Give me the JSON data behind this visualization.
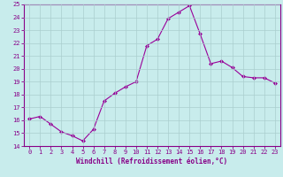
{
  "x": [
    0,
    1,
    2,
    3,
    4,
    5,
    6,
    7,
    8,
    9,
    10,
    11,
    12,
    13,
    14,
    15,
    16,
    17,
    18,
    19,
    20,
    21,
    22,
    23
  ],
  "y": [
    16.1,
    16.3,
    15.7,
    15.1,
    14.8,
    14.4,
    15.3,
    17.5,
    18.1,
    18.6,
    19.0,
    21.8,
    22.3,
    23.9,
    24.4,
    24.9,
    22.7,
    20.4,
    20.6,
    20.1,
    19.4,
    19.3,
    19.3,
    18.9
  ],
  "line_color": "#990099",
  "marker": "D",
  "marker_size": 2,
  "xlabel": "Windchill (Refroidissement éolien,°C)",
  "ylim": [
    14,
    25
  ],
  "xlim": [
    -0.5,
    23.5
  ],
  "yticks": [
    14,
    15,
    16,
    17,
    18,
    19,
    20,
    21,
    22,
    23,
    24,
    25
  ],
  "xticks": [
    0,
    1,
    2,
    3,
    4,
    5,
    6,
    7,
    8,
    9,
    10,
    11,
    12,
    13,
    14,
    15,
    16,
    17,
    18,
    19,
    20,
    21,
    22,
    23
  ],
  "xtick_labels": [
    "0",
    "1",
    "2",
    "3",
    "4",
    "5",
    "6",
    "7",
    "8",
    "9",
    "10",
    "11",
    "12",
    "13",
    "14",
    "15",
    "16",
    "17",
    "18",
    "19",
    "20",
    "21",
    "22",
    "23"
  ],
  "background_color": "#c8ecec",
  "grid_color": "#aacece",
  "axis_bg": "#c8ecec",
  "line_lw": 0.8,
  "xlabel_color": "#880088",
  "tick_color": "#880088",
  "border_color": "#880088",
  "tick_fontsize": 5,
  "xlabel_fontsize": 5.5
}
